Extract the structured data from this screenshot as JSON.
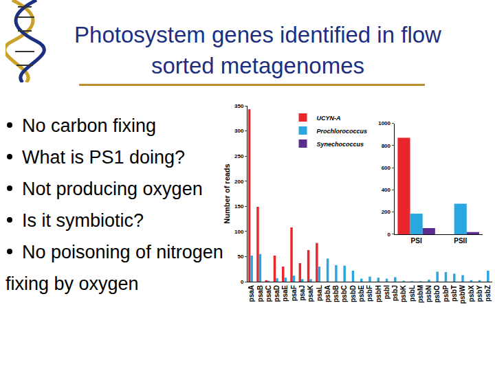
{
  "slide": {
    "title_lines": [
      "Photosystem genes identified in flow",
      "sorted metagenomes"
    ],
    "bullets": [
      "No carbon fixing",
      "What is PS1 doing?",
      "Not producing oxygen",
      "Is it symbiotic?",
      "No poisoning of nitrogen fixing by oxygen"
    ]
  },
  "chart_data": [
    {
      "type": "bar",
      "y_label": "Number of reads",
      "categories": [
        "psaA",
        "psaB",
        "psaC",
        "psaD",
        "psaE",
        "psaF",
        "psaJ",
        "psaK",
        "psaL",
        "psbA",
        "psbB",
        "psbC",
        "psbD",
        "psbE",
        "psbF",
        "psbH",
        "psbI",
        "psbJ",
        "psbK",
        "psbL",
        "psbM",
        "psbN",
        "psbO",
        "psbP",
        "psbT",
        "psbW",
        "psbX",
        "psbY",
        "psbZ"
      ],
      "series": [
        {
          "name": "UCYN-A",
          "color": "#e8262b",
          "values": [
            343,
            149,
            3,
            52,
            30,
            108,
            37,
            63,
            77,
            0,
            0,
            0,
            0,
            0,
            0,
            0,
            0,
            0,
            0,
            0,
            0,
            0,
            0,
            0,
            0,
            0,
            0,
            0,
            0
          ]
        },
        {
          "name": "Prochlorococcus",
          "color": "#2aa7e0",
          "values": [
            52,
            55,
            2,
            7,
            8,
            12,
            5,
            5,
            30,
            46,
            33,
            32,
            22,
            6,
            10,
            8,
            6,
            9,
            2,
            1,
            1,
            4,
            20,
            19,
            16,
            13,
            3,
            3,
            22
          ]
        },
        {
          "name": "Synechococcus",
          "color": "#5b2d8e",
          "values": [
            0,
            0,
            0,
            0,
            0,
            0,
            0,
            0,
            0,
            0,
            0,
            0,
            0,
            0,
            0,
            0,
            0,
            0,
            0,
            0,
            0,
            0,
            0,
            0,
            0,
            0,
            0,
            0,
            0
          ]
        }
      ],
      "ylim": [
        0,
        350
      ],
      "yticks": [
        0,
        50,
        100,
        150,
        200,
        250,
        300,
        350
      ],
      "legend": "upper center"
    },
    {
      "type": "bar",
      "categories": [
        "PSI",
        "PSII"
      ],
      "series": [
        {
          "name": "UCYN-A",
          "color": "#e8262b",
          "values": [
            870,
            0
          ]
        },
        {
          "name": "Prochlorococcus",
          "color": "#2aa7e0",
          "values": [
            185,
            275
          ]
        },
        {
          "name": "Synechococcus",
          "color": "#5b2d8e",
          "values": [
            55,
            20
          ]
        }
      ],
      "ylim": [
        0,
        1000
      ],
      "yticks": [
        0,
        200,
        400,
        600,
        800,
        1000
      ]
    }
  ]
}
